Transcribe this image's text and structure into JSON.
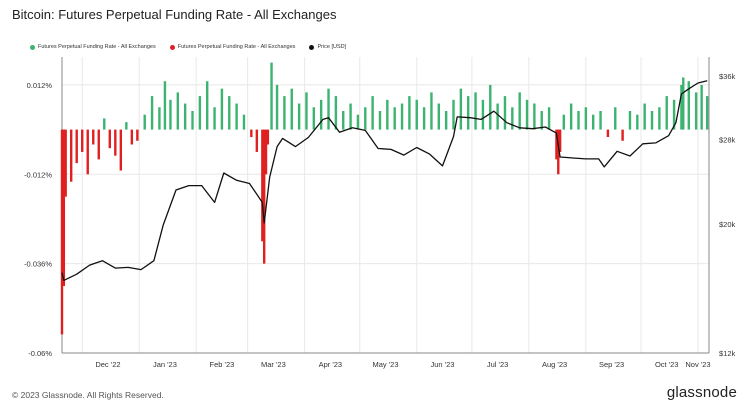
{
  "title": "Bitcoin: Futures Perpetual Funding Rate - All Exchanges",
  "footer": "© 2023 Glassnode. All Rights Reserved.",
  "logo": "glassnode",
  "colors": {
    "positive": "#3cb371",
    "negative": "#e02020",
    "price": "#111111",
    "grid": "#e8e8e8",
    "axis": "#888888"
  },
  "legend": [
    {
      "label": "Futures Perpetual Funding Rate - All Exchanges",
      "color": "#3cb371"
    },
    {
      "label": "Futures Perpetual Funding Rate - All Exchanges",
      "color": "#e02020"
    },
    {
      "label": "Price [USD]",
      "color": "#111111"
    }
  ],
  "chart_data": {
    "type": "bar",
    "title": "Bitcoin: Futures Perpetual Funding Rate - All Exchanges",
    "x_ticks": [
      "Dec '22",
      "Jan '23",
      "Feb '23",
      "Mar '23",
      "Apr '23",
      "May '23",
      "Jun '23",
      "Jul '23",
      "Aug '23",
      "Sep '23",
      "Oct '23",
      "Nov '23"
    ],
    "x_range": [
      "2022-11-20",
      "2023-11-07"
    ],
    "y_left": {
      "ticks": [
        "0.012%",
        "-0.012%",
        "-0.036%",
        "-0.06%"
      ],
      "tick_values": [
        0.012,
        -0.012,
        -0.036,
        -0.06
      ],
      "ylim": [
        -0.06,
        0.0195
      ],
      "unit": "%"
    },
    "y_right": {
      "ticks": [
        "$36k",
        "$28k",
        "$20k",
        "$12k"
      ],
      "tick_values": [
        36000,
        28000,
        20000,
        12000
      ],
      "ylim": [
        12000,
        38800
      ],
      "scale": "log"
    },
    "grid": true,
    "legend_position": "top-left",
    "series": [
      {
        "name": "Futures Perpetual Funding Rate - All Exchanges",
        "kind": "bar",
        "color_rule": "green when positive, red when negative",
        "x": [
          "2022-11-20",
          "2022-11-21",
          "2022-11-22",
          "2022-11-25",
          "2022-11-28",
          "2022-12-01",
          "2022-12-04",
          "2022-12-07",
          "2022-12-10",
          "2022-12-13",
          "2022-12-16",
          "2022-12-19",
          "2022-12-22",
          "2022-12-25",
          "2022-12-28",
          "2022-12-31",
          "2023-01-04",
          "2023-01-08",
          "2023-01-12",
          "2023-01-15",
          "2023-01-18",
          "2023-01-22",
          "2023-01-26",
          "2023-01-30",
          "2023-02-03",
          "2023-02-07",
          "2023-02-11",
          "2023-02-15",
          "2023-02-19",
          "2023-02-23",
          "2023-02-27",
          "2023-03-03",
          "2023-03-06",
          "2023-03-09",
          "2023-03-10",
          "2023-03-11",
          "2023-03-12",
          "2023-03-14",
          "2023-03-17",
          "2023-03-21",
          "2023-03-25",
          "2023-03-29",
          "2023-04-02",
          "2023-04-06",
          "2023-04-10",
          "2023-04-14",
          "2023-04-18",
          "2023-04-22",
          "2023-04-26",
          "2023-04-30",
          "2023-05-04",
          "2023-05-08",
          "2023-05-12",
          "2023-05-16",
          "2023-05-20",
          "2023-05-24",
          "2023-05-28",
          "2023-06-01",
          "2023-06-05",
          "2023-06-09",
          "2023-06-13",
          "2023-06-17",
          "2023-06-21",
          "2023-06-25",
          "2023-06-29",
          "2023-07-03",
          "2023-07-07",
          "2023-07-11",
          "2023-07-15",
          "2023-07-19",
          "2023-07-23",
          "2023-07-27",
          "2023-07-31",
          "2023-08-04",
          "2023-08-08",
          "2023-08-12",
          "2023-08-16",
          "2023-08-17",
          "2023-08-18",
          "2023-08-20",
          "2023-08-24",
          "2023-08-28",
          "2023-09-01",
          "2023-09-05",
          "2023-09-09",
          "2023-09-13",
          "2023-09-17",
          "2023-09-21",
          "2023-09-25",
          "2023-09-29",
          "2023-10-03",
          "2023-10-07",
          "2023-10-11",
          "2023-10-15",
          "2023-10-19",
          "2023-10-23",
          "2023-10-24",
          "2023-10-27",
          "2023-10-31",
          "2023-11-03",
          "2023-11-06"
        ],
        "y": [
          -0.055,
          -0.042,
          -0.018,
          -0.014,
          -0.009,
          -0.006,
          -0.012,
          -0.004,
          -0.008,
          0.003,
          -0.005,
          -0.007,
          -0.011,
          0.002,
          -0.004,
          -0.003,
          0.004,
          0.009,
          0.006,
          0.013,
          0.008,
          0.01,
          0.007,
          0.005,
          0.009,
          0.013,
          0.006,
          0.011,
          0.009,
          0.007,
          0.004,
          -0.002,
          -0.006,
          -0.03,
          -0.036,
          -0.012,
          -0.004,
          0.018,
          0.012,
          0.009,
          0.011,
          0.007,
          0.01,
          0.006,
          0.008,
          0.011,
          0.009,
          0.005,
          0.007,
          0.004,
          0.006,
          0.009,
          0.005,
          0.008,
          0.006,
          0.007,
          0.009,
          0.008,
          0.006,
          0.01,
          0.007,
          0.005,
          0.008,
          0.011,
          0.009,
          0.01,
          0.008,
          0.012,
          0.007,
          0.009,
          0.006,
          0.01,
          0.008,
          0.007,
          0.005,
          0.006,
          -0.008,
          -0.012,
          -0.006,
          0.004,
          0.007,
          0.005,
          0.006,
          0.004,
          0.005,
          -0.002,
          0.006,
          -0.003,
          0.005,
          0.004,
          0.007,
          0.005,
          0.006,
          0.009,
          0.008,
          0.012,
          0.014,
          0.013,
          0.01,
          0.012,
          0.009
        ]
      },
      {
        "name": "Price [USD]",
        "kind": "line",
        "x": [
          "2022-11-20",
          "2022-11-21",
          "2022-11-28",
          "2022-12-05",
          "2022-12-12",
          "2022-12-19",
          "2022-12-26",
          "2023-01-02",
          "2023-01-09",
          "2023-01-14",
          "2023-01-21",
          "2023-01-28",
          "2023-02-04",
          "2023-02-11",
          "2023-02-16",
          "2023-02-23",
          "2023-03-02",
          "2023-03-09",
          "2023-03-10",
          "2023-03-13",
          "2023-03-17",
          "2023-03-20",
          "2023-03-27",
          "2023-04-03",
          "2023-04-11",
          "2023-04-14",
          "2023-04-20",
          "2023-04-27",
          "2023-05-04",
          "2023-05-11",
          "2023-05-18",
          "2023-05-25",
          "2023-06-01",
          "2023-06-08",
          "2023-06-15",
          "2023-06-21",
          "2023-06-23",
          "2023-06-30",
          "2023-07-06",
          "2023-07-13",
          "2023-07-20",
          "2023-07-27",
          "2023-08-03",
          "2023-08-10",
          "2023-08-16",
          "2023-08-18",
          "2023-08-25",
          "2023-09-01",
          "2023-09-08",
          "2023-09-11",
          "2023-09-18",
          "2023-09-25",
          "2023-10-02",
          "2023-10-09",
          "2023-10-16",
          "2023-10-20",
          "2023-10-23",
          "2023-10-27",
          "2023-11-01",
          "2023-11-06"
        ],
        "y": [
          16500,
          16000,
          16400,
          17000,
          17300,
          16800,
          16850,
          16700,
          17300,
          19900,
          22900,
          23300,
          23300,
          21800,
          24500,
          23800,
          23500,
          21800,
          20100,
          24100,
          27200,
          28100,
          27200,
          28200,
          30300,
          30500,
          28800,
          29300,
          29000,
          27000,
          26900,
          26300,
          27100,
          26400,
          25200,
          28300,
          30600,
          30500,
          30300,
          31300,
          29900,
          29300,
          29200,
          29400,
          28700,
          26100,
          26000,
          25900,
          25900,
          25100,
          26700,
          26200,
          27500,
          27600,
          28400,
          29900,
          33500,
          34200,
          35000,
          35300
        ]
      }
    ]
  }
}
